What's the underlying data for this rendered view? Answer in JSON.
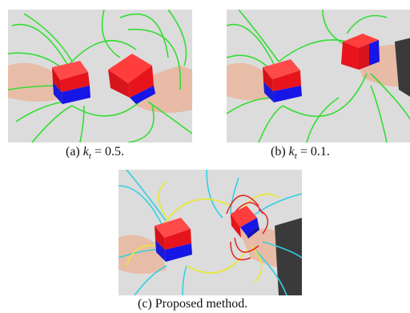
{
  "figure": {
    "panels": [
      {
        "id": "a",
        "caption_prefix": "(a) ",
        "caption_var": "k",
        "caption_sub": "t",
        "caption_suffix": " = 0.5."
      },
      {
        "id": "b",
        "caption_prefix": "(b) ",
        "caption_var": "k",
        "caption_sub": "t",
        "caption_suffix": " = 0.1."
      },
      {
        "id": "c",
        "caption_text": "(c) Proposed method."
      }
    ],
    "colors": {
      "background": "#d9d9d9",
      "cube_red": "#e8141c",
      "cube_blue": "#1616e6",
      "field_line_green": "#33dd33",
      "field_line_cyan": "#33d0e0",
      "field_line_yellow": "#e8e830",
      "field_line_red": "#e82020",
      "skin": "#e9bfa8",
      "sleeve": "#3a3a3a"
    }
  }
}
